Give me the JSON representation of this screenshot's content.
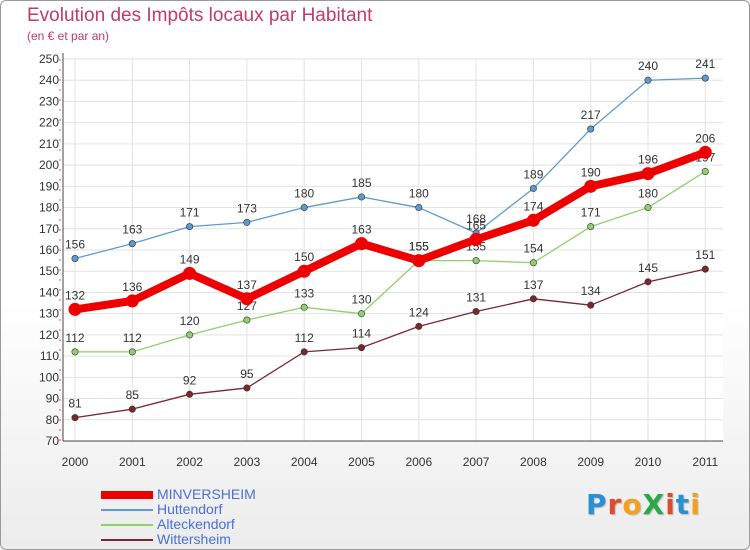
{
  "header": {
    "title": "Evolution des Impôts locaux par Habitant",
    "subtitle": "(en € et par an)"
  },
  "logo": {
    "text": "ProXiti",
    "letter_colors": [
      "#2a8fd4",
      "#e04b2b",
      "#f4a01b",
      "#2aa84a",
      "#e04b2b",
      "#2a8fd4",
      "#f4a01b"
    ]
  },
  "chart_data": {
    "type": "line",
    "title": "Evolution des Impôts locaux par Habitant",
    "subtitle": "(en € et par an)",
    "x": [
      "2000",
      "2001",
      "2002",
      "2003",
      "2004",
      "2005",
      "2006",
      "2007",
      "2008",
      "2009",
      "2010",
      "2011"
    ],
    "y_ticks": [
      70,
      80,
      90,
      100,
      110,
      120,
      130,
      140,
      150,
      160,
      170,
      180,
      190,
      200,
      210,
      220,
      230,
      240,
      250
    ],
    "ylim": [
      70,
      250
    ],
    "grid": true,
    "legend_position": "bottom-left",
    "series": [
      {
        "name": "Huttendorf",
        "color": "#5b9bd0",
        "emphasis": false,
        "values": [
          156,
          163,
          171,
          173,
          180,
          185,
          180,
          168,
          189,
          217,
          240,
          241
        ]
      },
      {
        "name": "Alteckendorf",
        "color": "#8ed16b",
        "emphasis": false,
        "values": [
          112,
          112,
          120,
          127,
          133,
          130,
          155,
          155,
          154,
          171,
          180,
          197
        ]
      },
      {
        "name": "Wittersheim",
        "color": "#7a2730",
        "emphasis": false,
        "values": [
          81,
          85,
          92,
          95,
          112,
          114,
          124,
          131,
          137,
          134,
          145,
          151
        ]
      },
      {
        "name": "MINVERSHEIM",
        "color": "#ee0000",
        "emphasis": true,
        "values": [
          132,
          136,
          149,
          137,
          150,
          163,
          155,
          165,
          174,
          190,
          196,
          206
        ]
      }
    ],
    "legend_order": [
      "MINVERSHEIM",
      "Huttendorf",
      "Alteckendorf",
      "Wittersheim"
    ],
    "legend_label_color": "#4a6fd6"
  }
}
